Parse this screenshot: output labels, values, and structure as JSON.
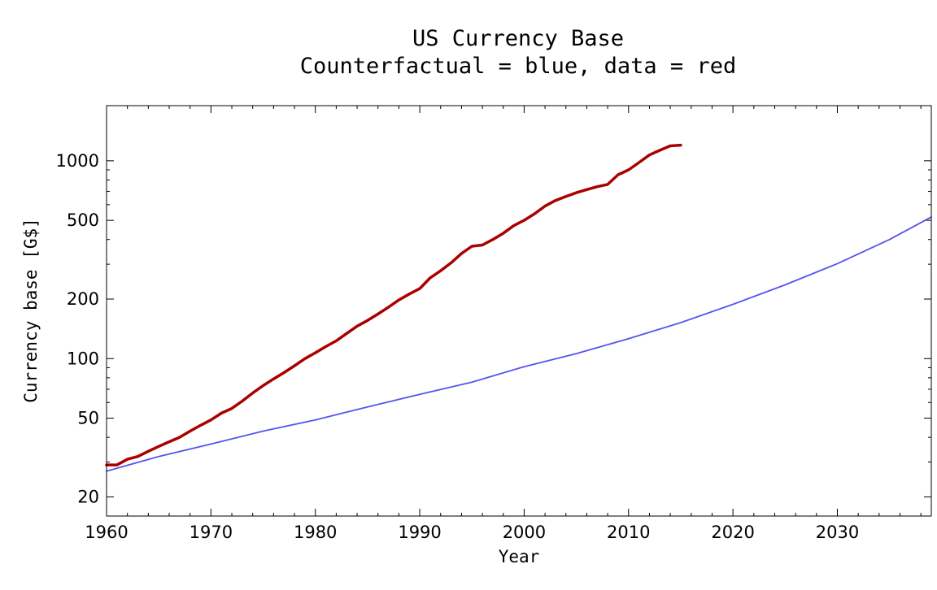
{
  "chart_data": {
    "type": "line",
    "title": "US Currency Base",
    "subtitle": "Counterfactual = blue, data = red",
    "xlabel": "Year",
    "ylabel": "Currency base [G$]",
    "xlim": [
      1960,
      2039
    ],
    "ylim": [
      16,
      1900
    ],
    "y_scale": "log",
    "grid": false,
    "x_ticks": [
      1960,
      1970,
      1980,
      1990,
      2000,
      2010,
      2020,
      2030
    ],
    "y_ticks": [
      20,
      50,
      100,
      200,
      500,
      1000
    ],
    "series": [
      {
        "color": "#aa0000",
        "x": [
          1960,
          1961,
          1962,
          1963,
          1964,
          1965,
          1966,
          1967,
          1968,
          1969,
          1970,
          1971,
          1972,
          1973,
          1974,
          1975,
          1976,
          1977,
          1978,
          1979,
          1980,
          1981,
          1982,
          1983,
          1984,
          1985,
          1986,
          1987,
          1988,
          1989,
          1990,
          1991,
          1992,
          1993,
          1994,
          1995,
          1996,
          1997,
          1998,
          1999,
          2000,
          2001,
          2002,
          2003,
          2004,
          2005,
          2006,
          2007,
          2008,
          2009,
          2010,
          2011,
          2012,
          2013,
          2014,
          2015
        ],
        "values": [
          29,
          29,
          31,
          32,
          34,
          36,
          38,
          40,
          43,
          46,
          49,
          53,
          56,
          61,
          67,
          73,
          79,
          85,
          92,
          100,
          107,
          115,
          123,
          134,
          146,
          156,
          168,
          182,
          198,
          212,
          226,
          256,
          278,
          305,
          340,
          370,
          375,
          400,
          430,
          470,
          500,
          540,
          590,
          630,
          660,
          690,
          715,
          740,
          760,
          850,
          900,
          980,
          1070,
          1130,
          1190,
          1200
        ]
      },
      {
        "color": "#5555ee",
        "x": [
          1960,
          1965,
          1970,
          1975,
          1980,
          1985,
          1990,
          1995,
          2000,
          2005,
          2010,
          2015,
          2020,
          2025,
          2030,
          2035,
          2039
        ],
        "values": [
          27,
          32,
          37,
          43,
          49,
          57,
          66,
          76,
          91,
          106,
          126,
          152,
          188,
          236,
          302,
          400,
          520
        ]
      }
    ]
  }
}
